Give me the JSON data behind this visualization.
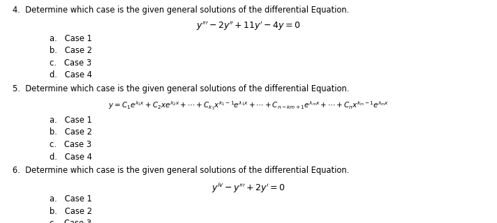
{
  "bg_color": "#ffffff",
  "text_color": "#000000",
  "figsize": [
    7.12,
    3.2
  ],
  "dpi": 100
}
